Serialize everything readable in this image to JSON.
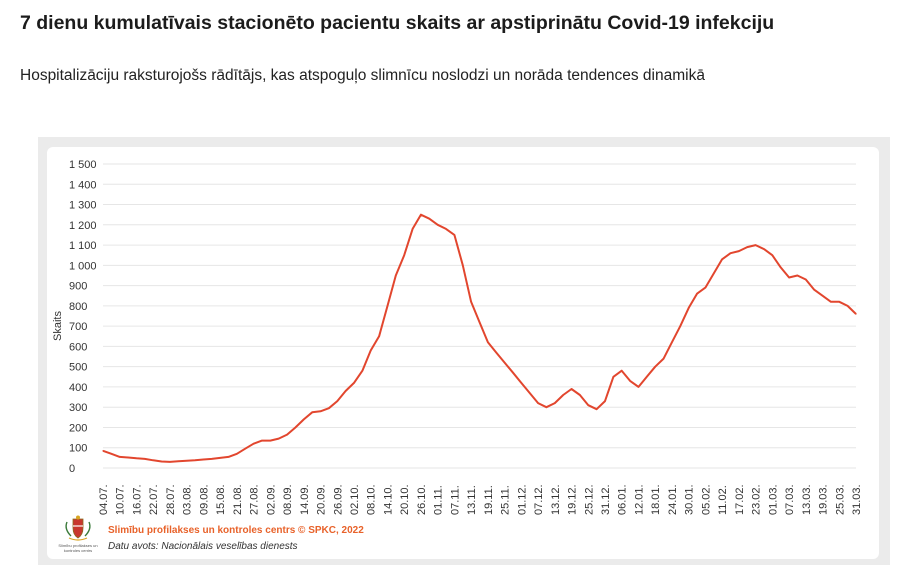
{
  "header": {
    "title": "7 dienu kumulatīvais stacionēto pacientu skaits ar apstiprinātu Covid-19 infekciju",
    "subtitle": "Hospitalizāciju raksturojošs rādītājs, kas atspoguļo slimnīcu noslodzi un norāda tendences dinamikā"
  },
  "footer": {
    "credit": "Slimību profilakses un kontroles centrs © SPKC, 2022",
    "source": "Datu avots: Nacionālais veselības dienests",
    "logo_caption": "Slimību profilakses un kontroles centrs",
    "logo_icon": "coat-of-arms-icon"
  },
  "chart_data": {
    "type": "line",
    "title": "",
    "xlabel": "",
    "ylabel": "Skaits",
    "ylim": [
      0,
      1500
    ],
    "yticks": [
      0,
      100,
      200,
      300,
      400,
      500,
      600,
      700,
      800,
      900,
      1000,
      1100,
      1200,
      1300,
      1400,
      1500
    ],
    "ytick_labels": [
      "0",
      "100",
      "200",
      "300",
      "400",
      "500",
      "600",
      "700",
      "800",
      "900",
      "1 000",
      "1 100",
      "1 200",
      "1 300",
      "1 400",
      "1 500"
    ],
    "grid": true,
    "line_color": "#e2462e",
    "x_tick_labels": [
      "04.07.",
      "10.07.",
      "16.07.",
      "22.07.",
      "28.07.",
      "03.08.",
      "09.08.",
      "15.08.",
      "21.08.",
      "27.08.",
      "02.09.",
      "08.09.",
      "14.09.",
      "20.09.",
      "26.09.",
      "02.10.",
      "08.10.",
      "14.10.",
      "20.10.",
      "26.10.",
      "01.11.",
      "07.11.",
      "13.11.",
      "19.11.",
      "25.11.",
      "01.12.",
      "07.12.",
      "13.12.",
      "19.12.",
      "25.12.",
      "31.12.",
      "06.01.",
      "12.01.",
      "18.01.",
      "24.01.",
      "30.01.",
      "05.02.",
      "11.02.",
      "17.02.",
      "23.02.",
      "01.03.",
      "07.03.",
      "13.03.",
      "19.03.",
      "25.03.",
      "31.03."
    ],
    "series": [
      {
        "name": "",
        "x": [
          "04.07.",
          "07.07.",
          "10.07.",
          "13.07.",
          "16.07.",
          "19.07.",
          "22.07.",
          "25.07.",
          "28.07.",
          "31.07.",
          "03.08.",
          "06.08.",
          "09.08.",
          "12.08.",
          "15.08.",
          "18.08.",
          "21.08.",
          "24.08.",
          "27.08.",
          "30.08.",
          "02.09.",
          "05.09.",
          "08.09.",
          "11.09.",
          "14.09.",
          "17.09.",
          "20.09.",
          "23.09.",
          "26.09.",
          "29.09.",
          "02.10.",
          "05.10.",
          "08.10.",
          "11.10.",
          "14.10.",
          "17.10.",
          "20.10.",
          "23.10.",
          "26.10.",
          "29.10.",
          "01.11.",
          "04.11.",
          "07.11.",
          "10.11.",
          "13.11.",
          "16.11.",
          "19.11.",
          "22.11.",
          "25.11.",
          "28.11.",
          "01.12.",
          "04.12.",
          "07.12.",
          "10.12.",
          "13.12.",
          "16.12.",
          "19.12.",
          "22.12.",
          "25.12.",
          "28.12.",
          "31.12.",
          "03.01.",
          "06.01.",
          "09.01.",
          "12.01.",
          "15.01.",
          "18.01.",
          "21.01.",
          "24.01.",
          "27.01.",
          "30.01.",
          "02.02.",
          "05.02.",
          "08.02.",
          "11.02.",
          "14.02.",
          "17.02.",
          "20.02.",
          "23.02.",
          "26.02.",
          "01.03.",
          "04.03.",
          "07.03.",
          "10.03.",
          "13.03.",
          "16.03.",
          "19.03.",
          "22.03.",
          "25.03.",
          "28.03.",
          "31.03."
        ],
        "values": [
          85,
          70,
          55,
          52,
          48,
          45,
          38,
          32,
          30,
          33,
          36,
          38,
          42,
          45,
          50,
          55,
          70,
          95,
          120,
          135,
          135,
          145,
          165,
          200,
          240,
          275,
          280,
          295,
          330,
          380,
          420,
          480,
          580,
          650,
          800,
          950,
          1050,
          1180,
          1250,
          1230,
          1200,
          1180,
          1150,
          1000,
          820,
          720,
          620,
          570,
          520,
          470,
          420,
          370,
          320,
          300,
          320,
          360,
          390,
          360,
          310,
          290,
          330,
          450,
          480,
          430,
          400,
          450,
          500,
          540,
          620,
          700,
          790,
          860,
          890,
          960,
          1030,
          1060,
          1070,
          1090,
          1100,
          1080,
          1050,
          990,
          940,
          950,
          930,
          880,
          850,
          820,
          820,
          800,
          760
        ]
      }
    ]
  }
}
